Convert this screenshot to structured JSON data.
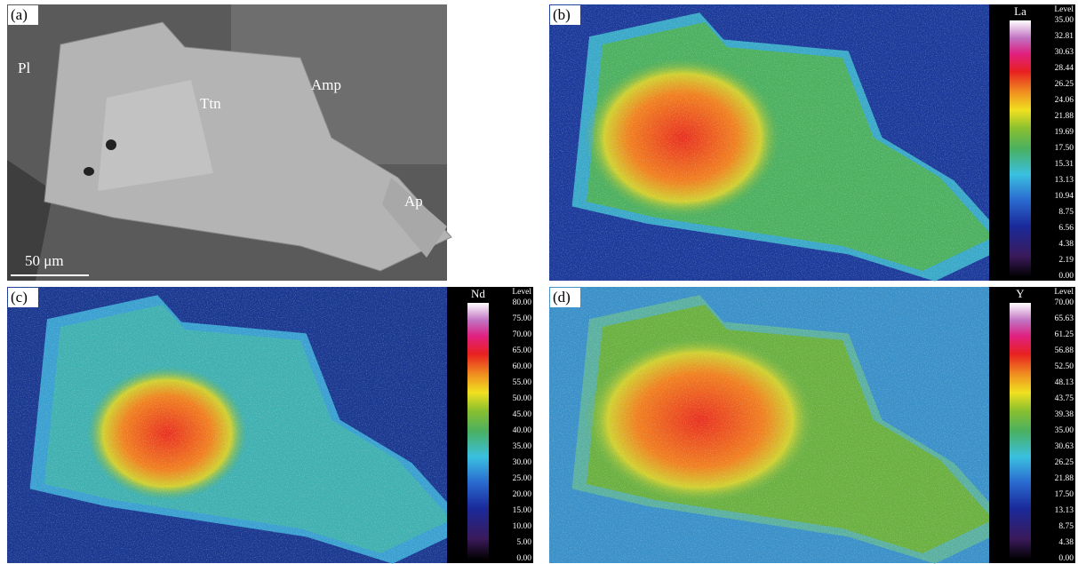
{
  "panels": [
    {
      "label": "(a)",
      "annotations": [
        "Pl",
        "Ttn",
        "Amp",
        "Ap"
      ],
      "scale_bar": "50 μm"
    },
    {
      "label": "(b)",
      "element": "La",
      "level_title": "Level",
      "levels": [
        "35.00",
        "32.81",
        "30.63",
        "28.44",
        "26.25",
        "24.06",
        "21.88",
        "19.69",
        "17.50",
        "15.31",
        "13.13",
        "10.94",
        "8.75",
        "6.56",
        "4.38",
        "2.19",
        "0.00"
      ]
    },
    {
      "label": "(c)",
      "element": "Nd",
      "level_title": "Level",
      "levels": [
        "80.00",
        "75.00",
        "70.00",
        "65.00",
        "60.00",
        "55.00",
        "50.00",
        "45.00",
        "40.00",
        "35.00",
        "30.00",
        "25.00",
        "20.00",
        "15.00",
        "10.00",
        "5.00",
        "0.00"
      ]
    },
    {
      "label": "(d)",
      "element": "Y",
      "level_title": "Level",
      "levels": [
        "70.00",
        "65.63",
        "61.25",
        "56.88",
        "52.50",
        "48.13",
        "43.75",
        "39.38",
        "35.00",
        "30.63",
        "26.25",
        "21.88",
        "17.50",
        "13.13",
        "8.75",
        "4.38",
        "0.00"
      ]
    }
  ]
}
